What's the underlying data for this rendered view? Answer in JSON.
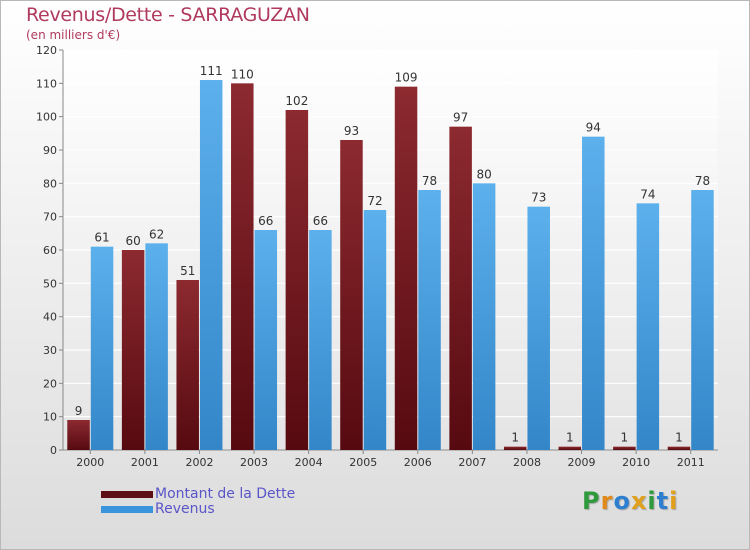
{
  "title": "Revenus/Dette - SARRAGUZAN",
  "subtitle": "(en milliers d'€)",
  "logo": "Proxiti",
  "colors": {
    "dette": "#7a1c22",
    "revenus": "#4da6e6"
  },
  "chart_data": {
    "type": "bar",
    "categories": [
      "2000",
      "2001",
      "2002",
      "2003",
      "2004",
      "2005",
      "2006",
      "2007",
      "2008",
      "2009",
      "2010",
      "2011"
    ],
    "series": [
      {
        "name": "Montant de la Dette",
        "values": [
          9,
          60,
          51,
          110,
          102,
          93,
          109,
          97,
          1,
          1,
          1,
          1
        ]
      },
      {
        "name": "Revenus",
        "values": [
          61,
          62,
          111,
          66,
          66,
          72,
          78,
          80,
          73,
          94,
          74,
          78
        ]
      }
    ],
    "ylim": [
      0,
      120
    ],
    "yticks": [
      0,
      10,
      20,
      30,
      40,
      50,
      60,
      70,
      80,
      90,
      100,
      110,
      120
    ],
    "grid": true,
    "legend": "bottom-left"
  }
}
